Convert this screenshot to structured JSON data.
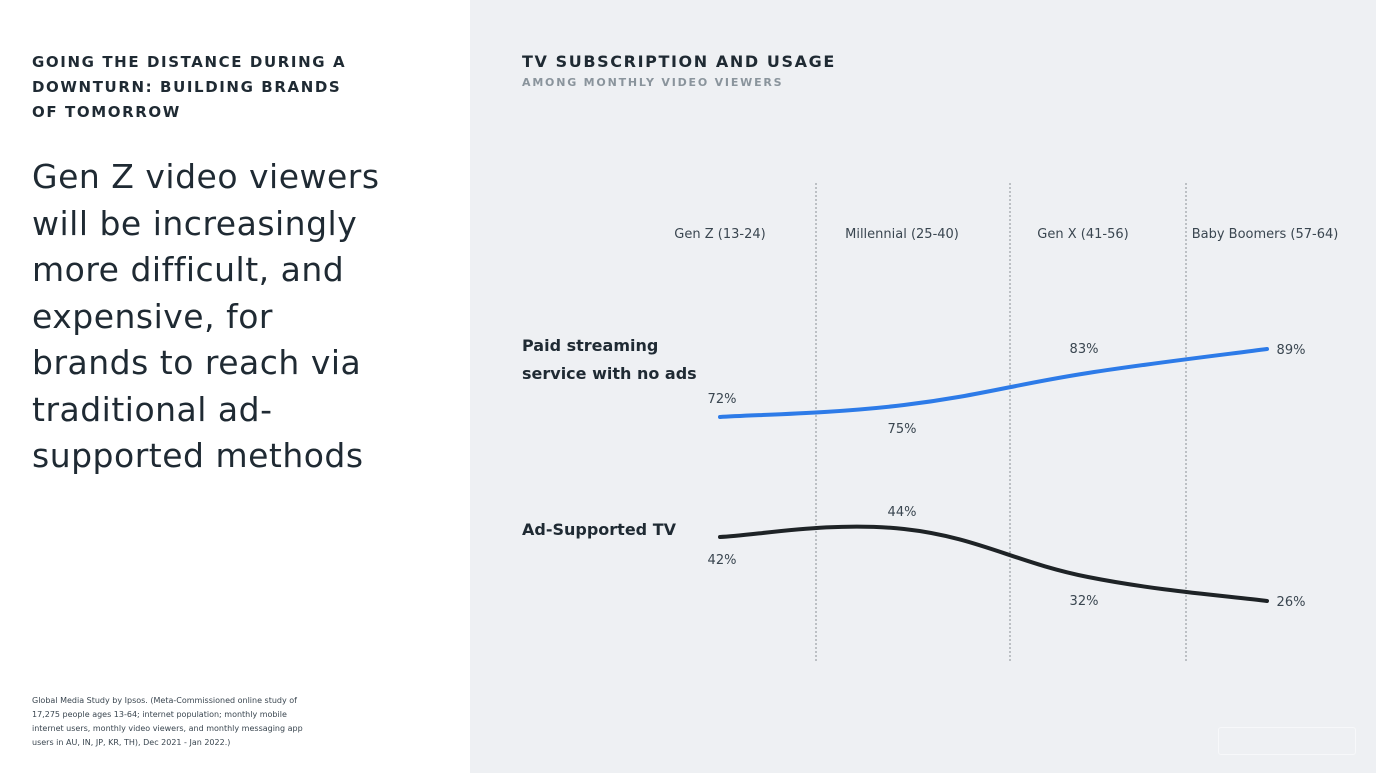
{
  "left": {
    "kicker_lines": [
      "GOING THE DISTANCE DURING A",
      "DOWNTURN: BUILDING BRANDS",
      "OF TOMORROW"
    ],
    "headline_lines": [
      "Gen Z video viewers",
      "will be increasingly",
      "more difficult, and",
      "expensive, for",
      "brands to reach via",
      "traditional ad-",
      "supported methods"
    ],
    "footnote_lines": [
      "Global Media Study by Ipsos. (Meta-Commissioned online study of",
      "17,275 people ages 13-64; internet population; monthly mobile",
      "internet users, monthly video viewers, and monthly messaging app",
      "users in AU, IN, JP, KR, TH), Dec 2021 - Jan 2022.)"
    ]
  },
  "colors": {
    "paid_line": "#2d7be8",
    "ad_line": "#1e2326",
    "divider": "#8a8f94",
    "label": "#3a4650"
  },
  "chart_data": {
    "type": "line",
    "title": "TV SUBSCRIPTION AND USAGE",
    "subtitle": "AMONG MONTHLY VIDEO VIEWERS",
    "categories": [
      "Gen Z (13-24)",
      "Millennial (25-40)",
      "Gen X (41-56)",
      "Baby Boomers (57-64)"
    ],
    "series": [
      {
        "name": "Paid streaming service with no ads",
        "name_lines": [
          "Paid streaming",
          "service with no ads"
        ],
        "values": [
          72,
          75,
          83,
          89
        ],
        "value_labels": [
          "72%",
          "75%",
          "83%",
          "89%"
        ],
        "color": "#2d7be8"
      },
      {
        "name": "Ad-Supported TV",
        "name_lines": [
          "Ad-Supported TV"
        ],
        "values": [
          42,
          44,
          32,
          26
        ],
        "value_labels": [
          "42%",
          "44%",
          "32%",
          "26%"
        ],
        "color": "#1e2326"
      }
    ],
    "unit": "%",
    "grid": false,
    "legend": "inline-left"
  }
}
